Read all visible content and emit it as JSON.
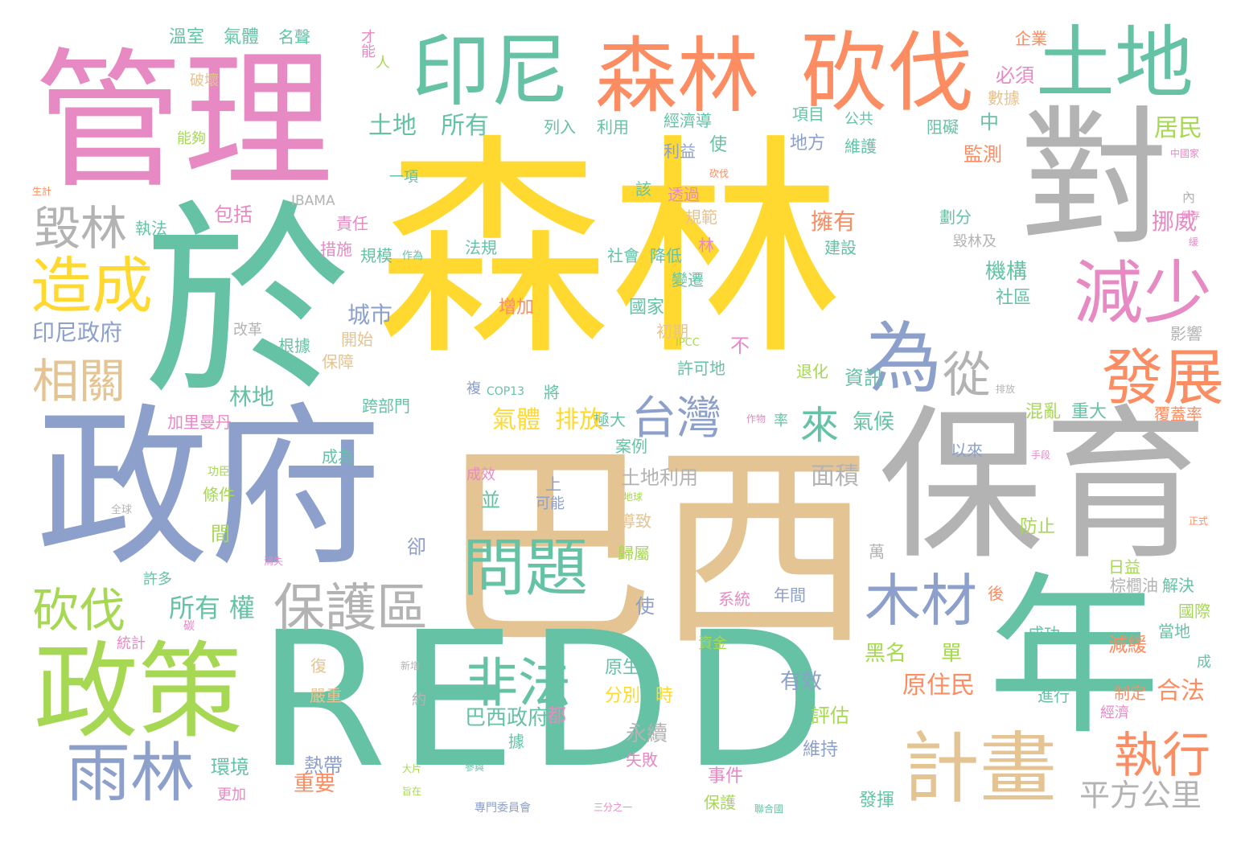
{
  "palette": {
    "yellow": "#ffd92f",
    "green": "#66c2a5",
    "blue": "#8da0cb",
    "pink": "#e78ac3",
    "lime": "#a6d854",
    "tan": "#e5c494",
    "grey": "#b3b3b3",
    "orange": "#fc8d62"
  },
  "words": [
    {
      "text": "森林",
      "color": "yellow"
    },
    {
      "text": "巴西",
      "color": "tan"
    },
    {
      "text": "REDD",
      "color": "green"
    },
    {
      "text": "政府",
      "color": "blue"
    },
    {
      "text": "保育",
      "color": "grey"
    },
    {
      "text": "管理",
      "color": "pink"
    },
    {
      "text": "於",
      "color": "green"
    },
    {
      "text": "對",
      "color": "grey"
    },
    {
      "text": "年",
      "color": "green"
    },
    {
      "text": "政策",
      "color": "lime"
    },
    {
      "text": "森林",
      "color": "orange"
    },
    {
      "text": "砍伐",
      "color": "orange"
    },
    {
      "text": "印尼",
      "color": "green"
    },
    {
      "text": "土地",
      "color": "green"
    },
    {
      "text": "問題",
      "color": "green"
    },
    {
      "text": "計畫",
      "color": "tan"
    },
    {
      "text": "雨林",
      "color": "blue"
    },
    {
      "text": "為",
      "color": "blue"
    },
    {
      "text": "減少",
      "color": "pink"
    },
    {
      "text": "發展",
      "color": "orange"
    },
    {
      "text": "造成",
      "color": "yellow"
    },
    {
      "text": "木材",
      "color": "blue"
    },
    {
      "text": "保護區",
      "color": "grey"
    },
    {
      "text": "非法",
      "color": "green"
    },
    {
      "text": "砍伐",
      "color": "lime"
    },
    {
      "text": "毀林",
      "color": "grey"
    },
    {
      "text": "相關",
      "color": "tan"
    },
    {
      "text": "台灣",
      "color": "blue"
    },
    {
      "text": "執行",
      "color": "orange"
    },
    {
      "text": "從",
      "color": "grey"
    },
    {
      "text": "來",
      "color": "green"
    },
    {
      "text": "平方公里",
      "color": "grey"
    },
    {
      "text": "土地",
      "color": "green"
    },
    {
      "text": "所有",
      "color": "green"
    },
    {
      "text": "所有",
      "color": "green"
    },
    {
      "text": "權",
      "color": "green"
    },
    {
      "text": "溫室",
      "color": "green"
    },
    {
      "text": "氣體",
      "color": "green"
    },
    {
      "text": "名聲",
      "color": "green"
    },
    {
      "text": "才能",
      "color": "pink"
    },
    {
      "text": "人",
      "color": "lime"
    },
    {
      "text": "企業",
      "color": "orange"
    },
    {
      "text": "必須",
      "color": "pink"
    },
    {
      "text": "破壞",
      "color": "tan"
    },
    {
      "text": "列入",
      "color": "green"
    },
    {
      "text": "利用",
      "color": "green"
    },
    {
      "text": "經濟導",
      "color": "green"
    },
    {
      "text": "項目",
      "color": "green"
    },
    {
      "text": "公共",
      "color": "green"
    },
    {
      "text": "數據",
      "color": "tan"
    },
    {
      "text": "中",
      "color": "green"
    },
    {
      "text": "居民",
      "color": "lime"
    },
    {
      "text": "能夠",
      "color": "lime"
    },
    {
      "text": "一項",
      "color": "green"
    },
    {
      "text": "地方",
      "color": "blue"
    },
    {
      "text": "維護",
      "color": "green"
    },
    {
      "text": "阻礙",
      "color": "green"
    },
    {
      "text": "監測",
      "color": "orange"
    },
    {
      "text": "利益",
      "color": "blue"
    },
    {
      "text": "使",
      "color": "green"
    },
    {
      "text": "包括",
      "color": "pink"
    },
    {
      "text": "執法",
      "color": "green"
    },
    {
      "text": "責任",
      "color": "pink"
    },
    {
      "text": "規範",
      "color": "tan"
    },
    {
      "text": "擁有",
      "color": "orange"
    },
    {
      "text": "挪威",
      "color": "pink"
    },
    {
      "text": "措施",
      "color": "pink"
    },
    {
      "text": "規模",
      "color": "green"
    },
    {
      "text": "法規",
      "color": "green"
    },
    {
      "text": "社會",
      "color": "green"
    },
    {
      "text": "降低",
      "color": "green"
    },
    {
      "text": "建設",
      "color": "green"
    },
    {
      "text": "毀林及",
      "color": "grey"
    },
    {
      "text": "機構",
      "color": "green"
    },
    {
      "text": "社區",
      "color": "green"
    },
    {
      "text": "變遷",
      "color": "green"
    },
    {
      "text": "劃分",
      "color": "green"
    },
    {
      "text": "城市",
      "color": "blue"
    },
    {
      "text": "增加",
      "color": "orange"
    },
    {
      "text": "國家",
      "color": "green"
    },
    {
      "text": "印尼政府",
      "color": "blue"
    },
    {
      "text": "改革",
      "color": "grey"
    },
    {
      "text": "根據",
      "color": "green"
    },
    {
      "text": "開始",
      "color": "tan"
    },
    {
      "text": "保障",
      "color": "tan"
    },
    {
      "text": "初期",
      "color": "tan"
    },
    {
      "text": "影響",
      "color": "grey"
    },
    {
      "text": "不",
      "color": "pink"
    },
    {
      "text": "許可地",
      "color": "green"
    },
    {
      "text": "退化",
      "color": "lime"
    },
    {
      "text": "資訊",
      "color": "green"
    },
    {
      "text": "林地",
      "color": "green"
    },
    {
      "text": "跨部門",
      "color": "green"
    },
    {
      "text": "將",
      "color": "green"
    },
    {
      "text": "極大",
      "color": "green"
    },
    {
      "text": "氣體",
      "color": "yellow"
    },
    {
      "text": "排放",
      "color": "yellow"
    },
    {
      "text": "氣候",
      "color": "green"
    },
    {
      "text": "混亂",
      "color": "lime"
    },
    {
      "text": "重大",
      "color": "green"
    },
    {
      "text": "加里曼丹",
      "color": "pink"
    },
    {
      "text": "案例",
      "color": "green"
    },
    {
      "text": "成為",
      "color": "green"
    },
    {
      "text": "面積",
      "color": "grey"
    },
    {
      "text": "以來",
      "color": "blue"
    },
    {
      "text": "條件",
      "color": "lime"
    },
    {
      "text": "土地利用",
      "color": "grey"
    },
    {
      "text": "並",
      "color": "green"
    },
    {
      "text": "可能",
      "color": "blue"
    },
    {
      "text": "導致",
      "color": "tan"
    },
    {
      "text": "防止",
      "color": "lime"
    },
    {
      "text": "間",
      "color": "lime"
    },
    {
      "text": "卻",
      "color": "blue"
    },
    {
      "text": "歸屬",
      "color": "lime"
    },
    {
      "text": "日益",
      "color": "lime"
    },
    {
      "text": "萬",
      "color": "grey"
    },
    {
      "text": "棕櫚油",
      "color": "grey"
    },
    {
      "text": "解決",
      "color": "green"
    },
    {
      "text": "許多",
      "color": "green"
    },
    {
      "text": "使",
      "color": "blue"
    },
    {
      "text": "系統",
      "color": "pink"
    },
    {
      "text": "年間",
      "color": "blue"
    },
    {
      "text": "後",
      "color": "orange"
    },
    {
      "text": "國際",
      "color": "lime"
    },
    {
      "text": "當地",
      "color": "green"
    },
    {
      "text": "統計",
      "color": "pink"
    },
    {
      "text": "資金",
      "color": "lime"
    },
    {
      "text": "黑名",
      "color": "lime"
    },
    {
      "text": "單",
      "color": "lime"
    },
    {
      "text": "成功",
      "color": "green"
    },
    {
      "text": "減緩",
      "color": "orange"
    },
    {
      "text": "復",
      "color": "tan"
    },
    {
      "text": "原生",
      "color": "green"
    },
    {
      "text": "有效",
      "color": "blue"
    },
    {
      "text": "原住民",
      "color": "orange"
    },
    {
      "text": "合法",
      "color": "orange"
    },
    {
      "text": "嚴重",
      "color": "tan"
    },
    {
      "text": "分別",
      "color": "yellow"
    },
    {
      "text": "時",
      "color": "yellow"
    },
    {
      "text": "評估",
      "color": "lime"
    },
    {
      "text": "進行",
      "color": "green"
    },
    {
      "text": "制定",
      "color": "orange"
    },
    {
      "text": "都",
      "color": "pink"
    },
    {
      "text": "經濟",
      "color": "pink"
    },
    {
      "text": "巴西政府",
      "color": "green"
    },
    {
      "text": "永續",
      "color": "grey"
    },
    {
      "text": "約",
      "color": "grey"
    },
    {
      "text": "環境",
      "color": "green"
    },
    {
      "text": "熱帶",
      "color": "blue"
    },
    {
      "text": "據",
      "color": "green"
    },
    {
      "text": "失敗",
      "color": "pink"
    },
    {
      "text": "維持",
      "color": "blue"
    },
    {
      "text": "更加",
      "color": "pink"
    },
    {
      "text": "重要",
      "color": "orange"
    },
    {
      "text": "事件",
      "color": "pink"
    },
    {
      "text": "保護",
      "color": "lime"
    },
    {
      "text": "發揮",
      "color": "green"
    },
    {
      "text": "IBAMA",
      "color": "grey"
    },
    {
      "text": "COP13",
      "color": "green"
    },
    {
      "text": "IPCC",
      "color": "lime"
    },
    {
      "text": "成效",
      "color": "pink"
    },
    {
      "text": "上",
      "color": "blue"
    },
    {
      "text": "林",
      "color": "pink"
    },
    {
      "text": "透過",
      "color": "pink"
    },
    {
      "text": "該",
      "color": "green"
    },
    {
      "text": "作為",
      "color": "green"
    },
    {
      "text": "複",
      "color": "blue"
    },
    {
      "text": "率",
      "color": "green"
    },
    {
      "text": "覆蓋率",
      "color": "orange"
    },
    {
      "text": "內",
      "color": "grey"
    },
    {
      "text": "手段",
      "color": "pink"
    },
    {
      "text": "正式",
      "color": "orange"
    },
    {
      "text": "成",
      "color": "green"
    },
    {
      "text": "生計",
      "color": "orange"
    },
    {
      "text": "功臣",
      "color": "lime"
    },
    {
      "text": "全球",
      "color": "grey"
    },
    {
      "text": "地球",
      "color": "lime"
    },
    {
      "text": "消失",
      "color": "pink"
    },
    {
      "text": "碳",
      "color": "pink"
    },
    {
      "text": "新增",
      "color": "grey"
    },
    {
      "text": "參與",
      "color": "green"
    },
    {
      "text": "專門委員會",
      "color": "blue"
    },
    {
      "text": "三分之一",
      "color": "pink"
    },
    {
      "text": "聯合國",
      "color": "green"
    },
    {
      "text": "大片",
      "color": "lime"
    },
    {
      "text": "旨在",
      "color": "lime"
    },
    {
      "text": "砍伐",
      "color": "orange"
    },
    {
      "text": "作物",
      "color": "pink"
    },
    {
      "text": "排放",
      "color": "grey"
    },
    {
      "text": "中國家",
      "color": "pink"
    },
    {
      "text": "保存",
      "color": "pink"
    },
    {
      "text": "緩",
      "color": "pink"
    }
  ]
}
